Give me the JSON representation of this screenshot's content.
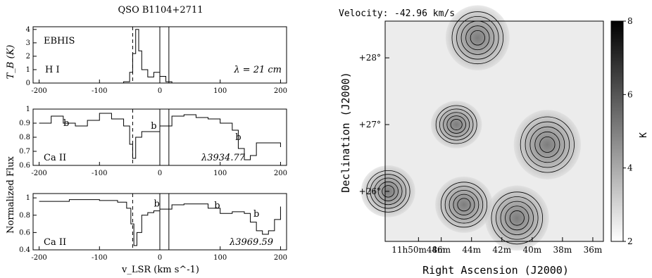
{
  "title": "QSO B1104+2711",
  "colors": {
    "ink": "#000000",
    "background": "#ffffff"
  },
  "chart_data": [
    {
      "type": "line",
      "panel": "top",
      "x": [
        -200,
        -100,
        -60,
        -50,
        -45,
        -40,
        -35,
        -30,
        -20,
        -10,
        0,
        10,
        20,
        40,
        100,
        200
      ],
      "values": [
        0,
        0,
        0.1,
        0.8,
        2.2,
        4.0,
        2.4,
        1.0,
        0.45,
        0.8,
        0.5,
        0.1,
        0,
        0,
        0,
        0
      ],
      "xlim": [
        -210,
        210
      ],
      "ylim": [
        0,
        4.2
      ],
      "x_ticks": [
        "-200",
        "-100",
        "0",
        "100",
        "200"
      ],
      "y_ticks": [
        "0",
        "1",
        "2",
        "3",
        "4"
      ],
      "ylabel": "T_B (K)",
      "labels": {
        "survey": "EBHIS",
        "species": "H I",
        "wavelength": "λ = 21 cm"
      },
      "dashed_line_x": -45,
      "vertical_lines_x": [
        0,
        15
      ]
    },
    {
      "type": "line",
      "panel": "middle",
      "x": [
        -200,
        -180,
        -160,
        -140,
        -120,
        -100,
        -80,
        -60,
        -50,
        -45,
        -40,
        -30,
        -10,
        0,
        20,
        40,
        60,
        80,
        100,
        120,
        130,
        140,
        150,
        160,
        180,
        200
      ],
      "values": [
        0.9,
        0.95,
        0.9,
        0.88,
        0.92,
        0.97,
        0.93,
        0.88,
        0.75,
        0.65,
        0.8,
        0.84,
        0.84,
        0.88,
        0.95,
        0.96,
        0.94,
        0.93,
        0.9,
        0.85,
        0.72,
        0.64,
        0.67,
        0.76,
        0.76,
        0.73
      ],
      "xlim": [
        -210,
        210
      ],
      "ylim": [
        0.6,
        1.0
      ],
      "x_ticks": [
        "-200",
        "-100",
        "0",
        "100",
        "200"
      ],
      "y_ticks": [
        "0.6",
        "0.7",
        "0.8",
        "0.9",
        "1"
      ],
      "labels": {
        "species": "Ca II",
        "wavelength": "λ3934.77"
      },
      "annotations": [
        {
          "x": -155,
          "y": 0.88,
          "text": "b"
        },
        {
          "x": -10,
          "y": 0.86,
          "text": "b"
        },
        {
          "x": 130,
          "y": 0.78,
          "text": "b"
        }
      ]
    },
    {
      "type": "line",
      "panel": "bottom",
      "x": [
        -200,
        -150,
        -100,
        -70,
        -55,
        -48,
        -43,
        -38,
        -30,
        -20,
        -10,
        0,
        20,
        40,
        80,
        100,
        120,
        140,
        150,
        160,
        170,
        180,
        190,
        200
      ],
      "values": [
        0.96,
        0.98,
        0.97,
        0.95,
        0.88,
        0.7,
        0.45,
        0.6,
        0.8,
        0.83,
        0.85,
        0.87,
        0.92,
        0.93,
        0.88,
        0.82,
        0.84,
        0.82,
        0.72,
        0.62,
        0.58,
        0.62,
        0.75,
        0.9
      ],
      "xlim": [
        -210,
        210
      ],
      "ylim": [
        0.4,
        1.05
      ],
      "x_ticks": [
        "-200",
        "-100",
        "0",
        "100",
        "200"
      ],
      "y_ticks": [
        "0.4",
        "0.6",
        "0.8",
        "1"
      ],
      "xlabel": "v_LSR (km s^-1)",
      "labels": {
        "species": "Ca II",
        "wavelength": "λ3969.59"
      },
      "annotations": [
        {
          "x": -5,
          "y": 0.9,
          "text": "b"
        },
        {
          "x": 95,
          "y": 0.88,
          "text": "b"
        },
        {
          "x": 160,
          "y": 0.78,
          "text": "b"
        }
      ]
    },
    {
      "type": "heatmap",
      "panel": "map",
      "velocity_label": "Velocity:",
      "velocity_value": "-42.96 km/s",
      "xlabel": "Right Ascension (J2000)",
      "ylabel": "Declination (J2000)",
      "x_ticks": [
        "11h50m48m",
        "46m",
        "44m",
        "42m",
        "40m",
        "38m",
        "36m"
      ],
      "y_ticks": [
        "+26°",
        "+27°",
        "+28°"
      ],
      "colorbar": {
        "label": "K",
        "ticks": [
          "2",
          "4",
          "6",
          "8"
        ],
        "range": [
          2,
          8
        ]
      },
      "blobs": [
        {
          "ra_min": 43.6,
          "dec_deg": 28.3,
          "peak_K": 7
        },
        {
          "ra_min": 39.0,
          "dec_deg": 26.7,
          "peak_K": 7.5
        },
        {
          "ra_min": 41.0,
          "dec_deg": 25.6,
          "peak_K": 7
        },
        {
          "ra_min": 44.5,
          "dec_deg": 25.8,
          "peak_K": 6
        },
        {
          "ra_min": 45.0,
          "dec_deg": 27.0,
          "peak_K": 5
        },
        {
          "ra_min": 49.5,
          "dec_deg": 26.0,
          "peak_K": 5.5
        }
      ]
    }
  ]
}
